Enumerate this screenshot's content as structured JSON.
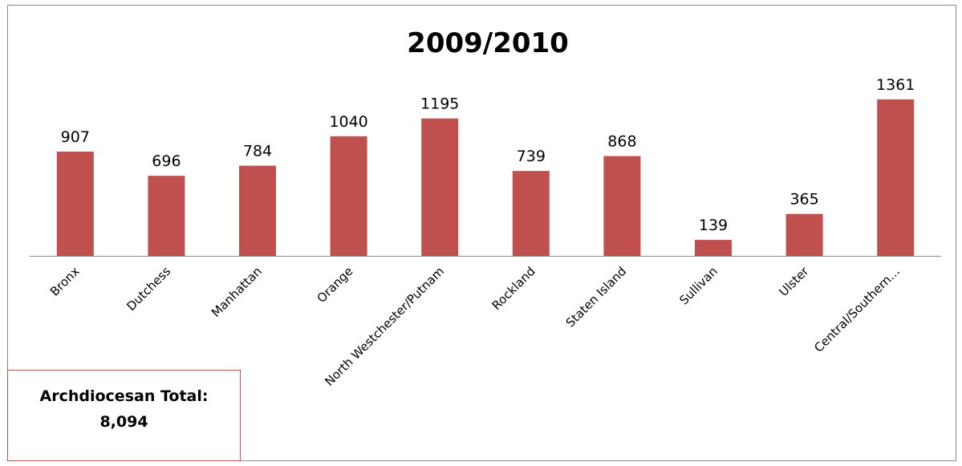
{
  "chart_data": {
    "type": "bar",
    "title": "2009/2010",
    "categories": [
      "Bronx",
      "Dutchess",
      "Manhattan",
      "Orange",
      "North Westchester/Putnam",
      "Rockland",
      "Staten Island",
      "Sullivan",
      "Ulster",
      "Central/Southern…"
    ],
    "values": [
      907,
      696,
      784,
      1040,
      1195,
      739,
      868,
      139,
      365,
      1361
    ],
    "data_labels": [
      "907",
      "696",
      "784",
      "1040",
      "1195",
      "739",
      "868",
      "139",
      "365",
      "1361"
    ],
    "ylim": [
      0,
      1500
    ],
    "grid": false,
    "bar_color": "#c0504d"
  },
  "total_box": {
    "label": "Archdiocesan Total:",
    "value": "8,094",
    "border_color": "#c0504d"
  }
}
